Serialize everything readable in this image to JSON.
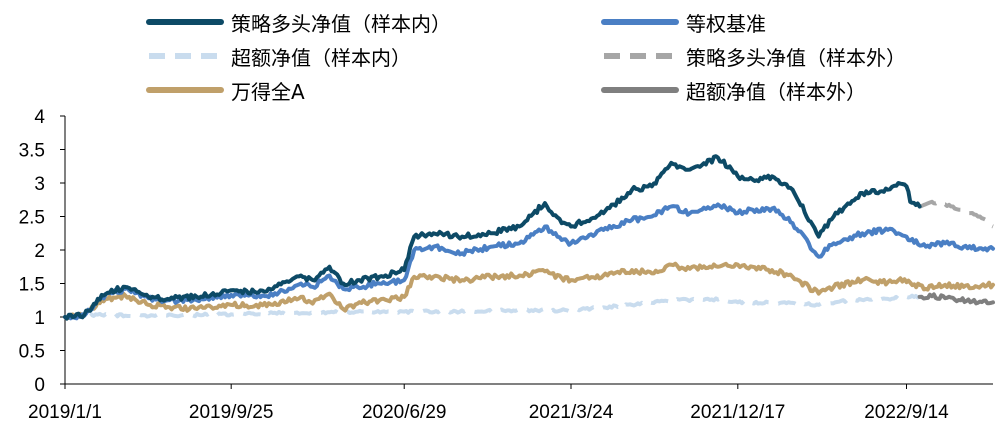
{
  "chart_data": {
    "type": "line",
    "title": "",
    "xlabel": "",
    "ylabel": "",
    "ylim": [
      0,
      4
    ],
    "yticks": [
      "0",
      "0.5",
      "1",
      "1.5",
      "2",
      "2.5",
      "3",
      "3.5",
      "4"
    ],
    "xticks": [
      "2019/1/1",
      "2019/9/25",
      "2020/6/29",
      "2021/3/24",
      "2021/12/17",
      "2022/9/14"
    ],
    "x_range": [
      "2019/1/1",
      "2023/1/31"
    ],
    "grid": false,
    "legend_position": "top",
    "series": [
      {
        "name": "策略多头净值（样本内）",
        "color": "#0d4a66",
        "style": "solid",
        "points": [
          [
            "2019/1/1",
            1.0
          ],
          [
            "2019/2/1",
            1.03
          ],
          [
            "2019/3/1",
            1.33
          ],
          [
            "2019/4/8",
            1.45
          ],
          [
            "2019/5/15",
            1.3
          ],
          [
            "2019/6/15",
            1.27
          ],
          [
            "2019/8/1",
            1.3
          ],
          [
            "2019/9/25",
            1.4
          ],
          [
            "2019/11/1",
            1.38
          ],
          [
            "2019/12/1",
            1.42
          ],
          [
            "2020/1/15",
            1.62
          ],
          [
            "2020/2/3",
            1.55
          ],
          [
            "2020/3/1",
            1.75
          ],
          [
            "2020/3/23",
            1.5
          ],
          [
            "2020/4/15",
            1.55
          ],
          [
            "2020/5/20",
            1.6
          ],
          [
            "2020/6/29",
            1.7
          ],
          [
            "2020/7/15",
            2.2
          ],
          [
            "2020/8/15",
            2.25
          ],
          [
            "2020/9/30",
            2.2
          ],
          [
            "2020/11/15",
            2.25
          ],
          [
            "2020/12/31",
            2.35
          ],
          [
            "2021/2/10",
            2.7
          ],
          [
            "2021/3/9",
            2.4
          ],
          [
            "2021/3/24",
            2.35
          ],
          [
            "2021/5/15",
            2.55
          ],
          [
            "2021/6/30",
            2.9
          ],
          [
            "2021/8/1",
            2.95
          ],
          [
            "2021/9/1",
            3.3
          ],
          [
            "2021/10/1",
            3.2
          ],
          [
            "2021/11/15",
            3.38
          ],
          [
            "2021/12/17",
            3.1
          ],
          [
            "2022/1/10",
            3.05
          ],
          [
            "2022/2/10",
            3.1
          ],
          [
            "2022/3/15",
            2.9
          ],
          [
            "2022/4/26",
            2.2
          ],
          [
            "2022/5/20",
            2.5
          ],
          [
            "2022/7/5",
            2.85
          ],
          [
            "2022/8/15",
            2.9
          ],
          [
            "2022/9/1",
            3.0
          ],
          [
            "2022/9/14",
            2.95
          ],
          [
            "2022/9/20",
            2.72
          ],
          [
            "2022/10/5",
            2.65
          ]
        ]
      },
      {
        "name": "等权基准",
        "color": "#4a7fc4",
        "style": "solid",
        "points": [
          [
            "2019/1/1",
            1.0
          ],
          [
            "2019/2/1",
            1.02
          ],
          [
            "2019/3/1",
            1.3
          ],
          [
            "2019/4/8",
            1.42
          ],
          [
            "2019/5/15",
            1.28
          ],
          [
            "2019/6/15",
            1.25
          ],
          [
            "2019/8/1",
            1.25
          ],
          [
            "2019/9/25",
            1.33
          ],
          [
            "2019/11/1",
            1.3
          ],
          [
            "2019/12/1",
            1.32
          ],
          [
            "2020/1/15",
            1.5
          ],
          [
            "2020/2/3",
            1.45
          ],
          [
            "2020/3/1",
            1.62
          ],
          [
            "2020/3/23",
            1.42
          ],
          [
            "2020/4/15",
            1.45
          ],
          [
            "2020/5/20",
            1.5
          ],
          [
            "2020/6/29",
            1.55
          ],
          [
            "2020/7/15",
            2.0
          ],
          [
            "2020/8/15",
            2.05
          ],
          [
            "2020/9/30",
            1.95
          ],
          [
            "2020/11/15",
            2.05
          ],
          [
            "2020/12/31",
            2.1
          ],
          [
            "2021/2/10",
            2.35
          ],
          [
            "2021/3/9",
            2.15
          ],
          [
            "2021/3/24",
            2.1
          ],
          [
            "2021/5/15",
            2.3
          ],
          [
            "2021/6/30",
            2.45
          ],
          [
            "2021/8/1",
            2.5
          ],
          [
            "2021/9/1",
            2.65
          ],
          [
            "2021/10/1",
            2.55
          ],
          [
            "2021/11/15",
            2.68
          ],
          [
            "2021/12/17",
            2.55
          ],
          [
            "2022/1/10",
            2.6
          ],
          [
            "2022/2/10",
            2.62
          ],
          [
            "2022/3/15",
            2.4
          ],
          [
            "2022/4/26",
            1.9
          ],
          [
            "2022/5/20",
            2.1
          ],
          [
            "2022/7/5",
            2.25
          ],
          [
            "2022/8/15",
            2.3
          ],
          [
            "2022/9/1",
            2.25
          ],
          [
            "2022/9/14",
            2.2
          ],
          [
            "2022/10/15",
            2.05
          ],
          [
            "2022/11/15",
            2.1
          ],
          [
            "2022/12/15",
            2.05
          ],
          [
            "2023/1/31",
            2.02
          ]
        ]
      },
      {
        "name": "超额净值（样本内）",
        "color": "#c9dcee",
        "style": "dashed",
        "points": [
          [
            "2019/1/1",
            1.0
          ],
          [
            "2019/3/1",
            1.03
          ],
          [
            "2019/6/1",
            1.02
          ],
          [
            "2019/9/25",
            1.04
          ],
          [
            "2019/12/1",
            1.06
          ],
          [
            "2020/3/1",
            1.07
          ],
          [
            "2020/6/29",
            1.08
          ],
          [
            "2020/9/1",
            1.08
          ],
          [
            "2020/12/31",
            1.1
          ],
          [
            "2021/3/24",
            1.1
          ],
          [
            "2021/6/30",
            1.18
          ],
          [
            "2021/9/1",
            1.25
          ],
          [
            "2021/11/15",
            1.26
          ],
          [
            "2021/12/17",
            1.22
          ],
          [
            "2022/3/15",
            1.21
          ],
          [
            "2022/4/26",
            1.18
          ],
          [
            "2022/6/1",
            1.24
          ],
          [
            "2022/8/15",
            1.27
          ],
          [
            "2022/9/14",
            1.3
          ],
          [
            "2022/10/5",
            1.3
          ]
        ]
      },
      {
        "name": "策略多头净值（样本外）",
        "color": "#a6a6a6",
        "style": "dashed",
        "points": [
          [
            "2022/10/5",
            2.65
          ],
          [
            "2022/10/25",
            2.72
          ],
          [
            "2022/11/15",
            2.68
          ],
          [
            "2022/12/10",
            2.6
          ],
          [
            "2023/1/10",
            2.5
          ],
          [
            "2023/1/31",
            2.35
          ]
        ]
      },
      {
        "name": "万得全A",
        "color": "#c0a06a",
        "style": "solid",
        "points": [
          [
            "2019/1/1",
            1.0
          ],
          [
            "2019/2/1",
            1.02
          ],
          [
            "2019/3/1",
            1.25
          ],
          [
            "2019/4/8",
            1.32
          ],
          [
            "2019/5/15",
            1.18
          ],
          [
            "2019/6/15",
            1.15
          ],
          [
            "2019/8/1",
            1.12
          ],
          [
            "2019/9/25",
            1.18
          ],
          [
            "2019/11/1",
            1.16
          ],
          [
            "2019/12/1",
            1.18
          ],
          [
            "2020/1/15",
            1.3
          ],
          [
            "2020/2/3",
            1.2
          ],
          [
            "2020/3/1",
            1.35
          ],
          [
            "2020/3/23",
            1.12
          ],
          [
            "2020/4/15",
            1.2
          ],
          [
            "2020/5/20",
            1.25
          ],
          [
            "2020/6/29",
            1.3
          ],
          [
            "2020/7/15",
            1.6
          ],
          [
            "2020/8/15",
            1.6
          ],
          [
            "2020/9/30",
            1.55
          ],
          [
            "2020/11/15",
            1.6
          ],
          [
            "2020/12/31",
            1.62
          ],
          [
            "2021/2/10",
            1.68
          ],
          [
            "2021/3/9",
            1.58
          ],
          [
            "2021/3/24",
            1.55
          ],
          [
            "2021/5/15",
            1.62
          ],
          [
            "2021/6/30",
            1.7
          ],
          [
            "2021/8/1",
            1.65
          ],
          [
            "2021/9/1",
            1.78
          ],
          [
            "2021/10/1",
            1.72
          ],
          [
            "2021/11/15",
            1.75
          ],
          [
            "2021/12/17",
            1.78
          ],
          [
            "2022/1/10",
            1.75
          ],
          [
            "2022/2/10",
            1.7
          ],
          [
            "2022/3/15",
            1.6
          ],
          [
            "2022/4/26",
            1.35
          ],
          [
            "2022/5/20",
            1.45
          ],
          [
            "2022/7/5",
            1.55
          ],
          [
            "2022/8/15",
            1.52
          ],
          [
            "2022/9/1",
            1.55
          ],
          [
            "2022/9/14",
            1.52
          ],
          [
            "2022/10/15",
            1.42
          ],
          [
            "2022/11/15",
            1.48
          ],
          [
            "2022/12/15",
            1.45
          ],
          [
            "2023/1/31",
            1.48
          ]
        ]
      },
      {
        "name": "超额净值（样本外）",
        "color": "#7f7f7f",
        "style": "solid",
        "points": [
          [
            "2022/10/5",
            1.3
          ],
          [
            "2022/10/25",
            1.31
          ],
          [
            "2022/11/15",
            1.28
          ],
          [
            "2022/12/10",
            1.25
          ],
          [
            "2023/1/10",
            1.23
          ],
          [
            "2023/1/31",
            1.22
          ]
        ]
      }
    ]
  }
}
